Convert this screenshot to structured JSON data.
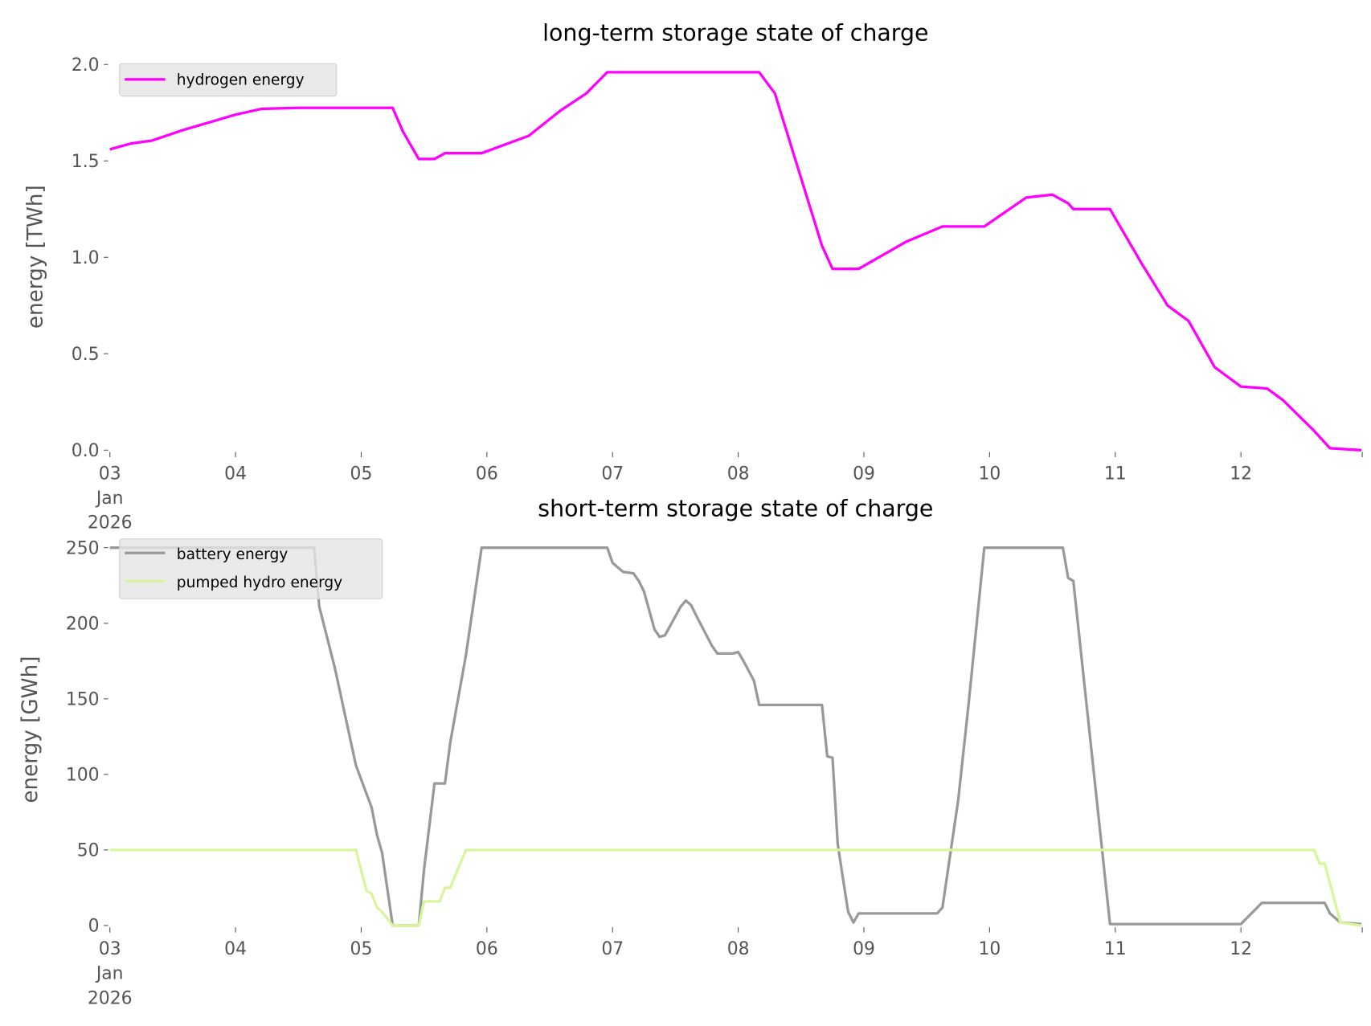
{
  "chart_data": [
    {
      "type": "line",
      "title": "long-term storage state of charge",
      "xlabel": "",
      "ylabel": "energy [TWh]",
      "xlim": [
        "2026-01-03T00:00",
        "2026-01-12T23:00"
      ],
      "ylim": [
        0,
        2.0
      ],
      "yticks": [
        "0.0",
        "0.5",
        "1.0",
        "1.5",
        "2.0"
      ],
      "ytick_values": [
        0,
        0.5,
        1.0,
        1.5,
        2.0
      ],
      "xticks": [
        "03\nJan\n2026",
        "04",
        "05",
        "06",
        "07",
        "08",
        "09",
        "10",
        "11",
        "12"
      ],
      "grid": false,
      "legend": "top-left",
      "series": [
        {
          "name": "hydrogen energy",
          "color": "#ff00ff",
          "x": [
            "2026-01-03T00:00",
            "2026-01-03T04:00",
            "2026-01-03T08:00",
            "2026-01-03T14:00",
            "2026-01-03T19:00",
            "2026-01-04T00:00",
            "2026-01-04T05:00",
            "2026-01-04T12:00",
            "2026-01-05T06:00",
            "2026-01-05T08:00",
            "2026-01-05T11:00",
            "2026-01-05T14:00",
            "2026-01-05T16:00",
            "2026-01-05T23:00",
            "2026-01-06T08:00",
            "2026-01-06T14:00",
            "2026-01-06T19:00",
            "2026-01-06T23:00",
            "2026-01-08T04:00",
            "2026-01-08T07:00",
            "2026-01-08T16:00",
            "2026-01-08T18:00",
            "2026-01-08T23:00",
            "2026-01-09T08:00",
            "2026-01-09T15:00",
            "2026-01-09T23:00",
            "2026-01-10T07:00",
            "2026-01-10T12:00",
            "2026-01-10T15:00",
            "2026-01-10T16:00",
            "2026-01-10T23:00",
            "2026-01-11T05:00",
            "2026-01-11T10:00",
            "2026-01-11T14:00",
            "2026-01-11T19:00",
            "2026-01-12T00:00",
            "2026-01-12T05:00",
            "2026-01-12T08:00",
            "2026-01-12T14:00",
            "2026-01-12T17:00",
            "2026-01-12T23:00"
          ],
          "y": [
            1.56,
            1.59,
            1.605,
            1.66,
            1.7,
            1.74,
            1.77,
            1.775,
            1.775,
            1.65,
            1.51,
            1.51,
            1.54,
            1.54,
            1.63,
            1.76,
            1.85,
            1.96,
            1.96,
            1.85,
            1.06,
            0.94,
            0.94,
            1.08,
            1.16,
            1.16,
            1.31,
            1.325,
            1.28,
            1.25,
            1.25,
            0.97,
            0.75,
            0.67,
            0.43,
            0.33,
            0.32,
            0.26,
            0.1,
            0.01,
            0.0
          ]
        }
      ]
    },
    {
      "type": "line",
      "title": "short-term storage state of charge",
      "xlabel": "",
      "ylabel": "energy [GWh]",
      "xlim": [
        "2026-01-03T00:00",
        "2026-01-12T23:00"
      ],
      "ylim": [
        0,
        250
      ],
      "yticks": [
        "0",
        "50",
        "100",
        "150",
        "200",
        "250"
      ],
      "ytick_values": [
        0,
        50,
        100,
        150,
        200,
        250
      ],
      "xticks": [
        "03\nJan\n2026",
        "04",
        "05",
        "06",
        "07",
        "08",
        "09",
        "10",
        "11",
        "12"
      ],
      "grid": false,
      "legend": "top-left",
      "series": [
        {
          "name": "battery energy",
          "color": "#999999",
          "x": [
            "2026-01-03T00:00",
            "2026-01-04T12:00",
            "2026-01-04T15:00",
            "2026-01-04T16:00",
            "2026-01-04T19:00",
            "2026-01-04T23:00",
            "2026-01-05T02:00",
            "2026-01-05T03:00",
            "2026-01-05T04:00",
            "2026-01-05T06:00",
            "2026-01-05T11:00",
            "2026-01-05T12:00",
            "2026-01-05T14:00",
            "2026-01-05T16:00",
            "2026-01-05T17:00",
            "2026-01-05T20:00",
            "2026-01-05T23:00",
            "2026-01-06T23:00",
            "2026-01-07T00:00",
            "2026-01-07T02:00",
            "2026-01-07T04:00",
            "2026-01-07T05:00",
            "2026-01-07T06:00",
            "2026-01-07T08:00",
            "2026-01-07T09:00",
            "2026-01-07T10:00",
            "2026-01-07T13:00",
            "2026-01-07T14:00",
            "2026-01-07T15:00",
            "2026-01-07T16:00",
            "2026-01-07T19:00",
            "2026-01-07T20:00",
            "2026-01-07T23:00",
            "2026-01-08T00:00",
            "2026-01-08T01:00",
            "2026-01-08T03:00",
            "2026-01-08T04:00",
            "2026-01-08T16:00",
            "2026-01-08T17:00",
            "2026-01-08T18:00",
            "2026-01-08T19:00",
            "2026-01-08T20:00",
            "2026-01-08T21:00",
            "2026-01-08T22:00",
            "2026-01-08T23:00",
            "2026-01-09T14:00",
            "2026-01-09T15:00",
            "2026-01-09T18:00",
            "2026-01-09T20:00",
            "2026-01-09T23:00",
            "2026-01-10T14:00",
            "2026-01-10T15:00",
            "2026-01-10T16:00",
            "2026-01-10T21:00",
            "2026-01-10T23:00",
            "2026-01-12T00:00",
            "2026-01-12T02:00",
            "2026-01-12T04:00",
            "2026-01-12T16:00",
            "2026-01-12T17:00",
            "2026-01-12T19:00",
            "2026-01-12T23:00"
          ],
          "y": [
            250,
            250,
            250,
            211,
            170,
            106,
            78,
            60,
            48,
            0,
            0,
            37,
            94,
            94,
            121,
            179,
            250,
            250,
            240,
            234,
            233,
            228,
            221,
            196,
            191,
            192,
            211,
            215,
            212,
            205,
            185,
            180,
            180,
            181,
            175,
            162,
            146,
            146,
            112,
            111,
            54,
            31,
            9,
            2,
            8,
            8,
            12,
            83,
            147,
            250,
            250,
            230,
            228,
            66,
            1,
            1,
            8,
            15,
            15,
            8,
            2,
            1
          ]
        },
        {
          "name": "pumped hydro energy",
          "color": "#d9f59b",
          "x": [
            "2026-01-03T00:00",
            "2026-01-04T23:00",
            "2026-01-05T01:00",
            "2026-01-05T02:00",
            "2026-01-05T03:00",
            "2026-01-05T04:00",
            "2026-01-05T06:00",
            "2026-01-05T11:00",
            "2026-01-05T12:00",
            "2026-01-05T15:00",
            "2026-01-05T16:00",
            "2026-01-05T17:00",
            "2026-01-05T20:00",
            "2026-01-12T14:00",
            "2026-01-12T15:00",
            "2026-01-12T16:00",
            "2026-01-12T19:00",
            "2026-01-12T23:00"
          ],
          "y": [
            50,
            50,
            23,
            21,
            12,
            9,
            0,
            0,
            16,
            16,
            25,
            25,
            50,
            50,
            41,
            41,
            2,
            0
          ]
        }
      ]
    }
  ]
}
